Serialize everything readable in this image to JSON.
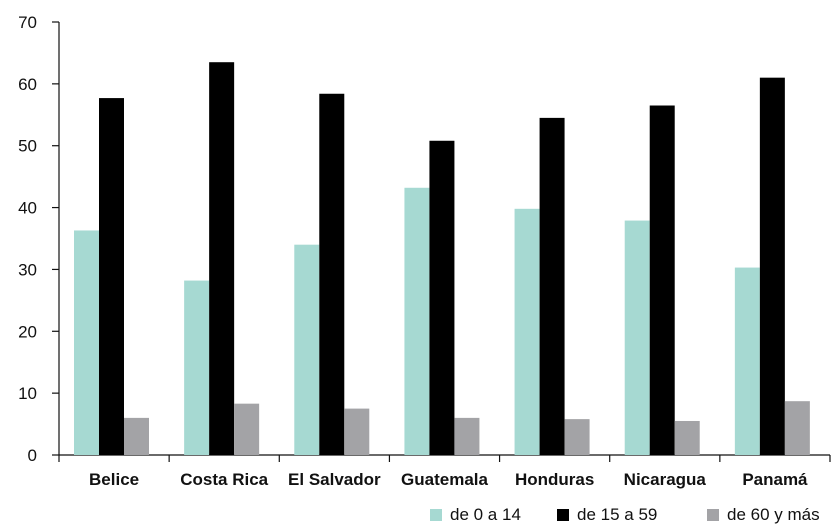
{
  "chart_data": {
    "type": "bar",
    "categories": [
      "Belice",
      "Costa Rica",
      "El Salvador",
      "Guatemala",
      "Honduras",
      "Nicaragua",
      "Panamá"
    ],
    "series": [
      {
        "name": "de 0 a 14",
        "color": "#a6d9d2",
        "values": [
          36.3,
          28.2,
          34.0,
          43.2,
          39.8,
          37.9,
          30.3
        ]
      },
      {
        "name": "de 15 a 59",
        "color": "#000000",
        "values": [
          57.7,
          63.5,
          58.4,
          50.8,
          54.5,
          56.5,
          61.0
        ]
      },
      {
        "name": "de 60 y más",
        "color": "#a3a3a6",
        "values": [
          6.0,
          8.3,
          7.5,
          6.0,
          5.8,
          5.5,
          8.7
        ]
      }
    ],
    "yticks": [
      0,
      10,
      20,
      30,
      40,
      50,
      60,
      70
    ],
    "ylim": [
      0,
      70
    ],
    "title": "",
    "xlabel": "",
    "ylabel": "",
    "legend_position": "bottom-right",
    "grid": false
  }
}
